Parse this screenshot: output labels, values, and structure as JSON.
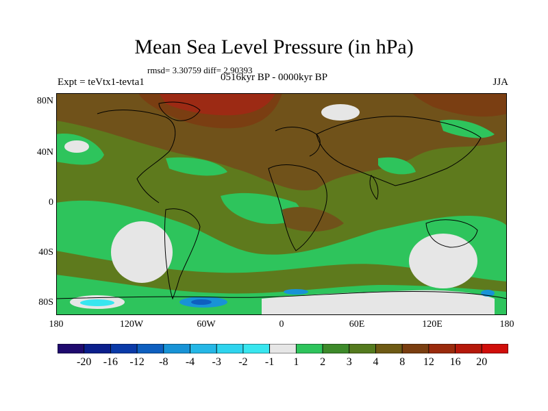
{
  "title": "Mean Sea Level Pressure (in hPa)",
  "stats": "rmsd= 3.30759 diff= 2.90393",
  "experiment": "Expt = teVtx1-tevta1",
  "period": "0516kyr BP - 0000kyr BP",
  "season": "JJA",
  "y_axis_labels": [
    "80N",
    "40N",
    "0",
    "40S",
    "80S"
  ],
  "x_axis_labels": [
    "180",
    "120W",
    "60W",
    "0",
    "60E",
    "120E",
    "180"
  ],
  "colorbar": {
    "labels": [
      "-20",
      "-16",
      "-12",
      "-8",
      "-4",
      "-3",
      "-2",
      "-1",
      "1",
      "2",
      "3",
      "4",
      "8",
      "12",
      "16",
      "20"
    ],
    "colors": [
      "#1f0a6e",
      "#0b1f8c",
      "#0a3aa8",
      "#0e5fbf",
      "#1893d6",
      "#25b7e6",
      "#2ed4ee",
      "#38e6ef",
      "#e6e6e6",
      "#2ec45c",
      "#3d8a2a",
      "#547a1e",
      "#6e5a14",
      "#7a3e10",
      "#9a2a0c",
      "#b5180a",
      "#d00e0a"
    ]
  },
  "palette": {
    "base": "#5e7a1d",
    "land_brown": "#70521a",
    "dark_brown": "#7a3e12",
    "red": "#9c2a14",
    "green": "#2ec45c",
    "gray": "#e6e6e6",
    "blue": "#1893d6",
    "cyan": "#38e6ef"
  }
}
